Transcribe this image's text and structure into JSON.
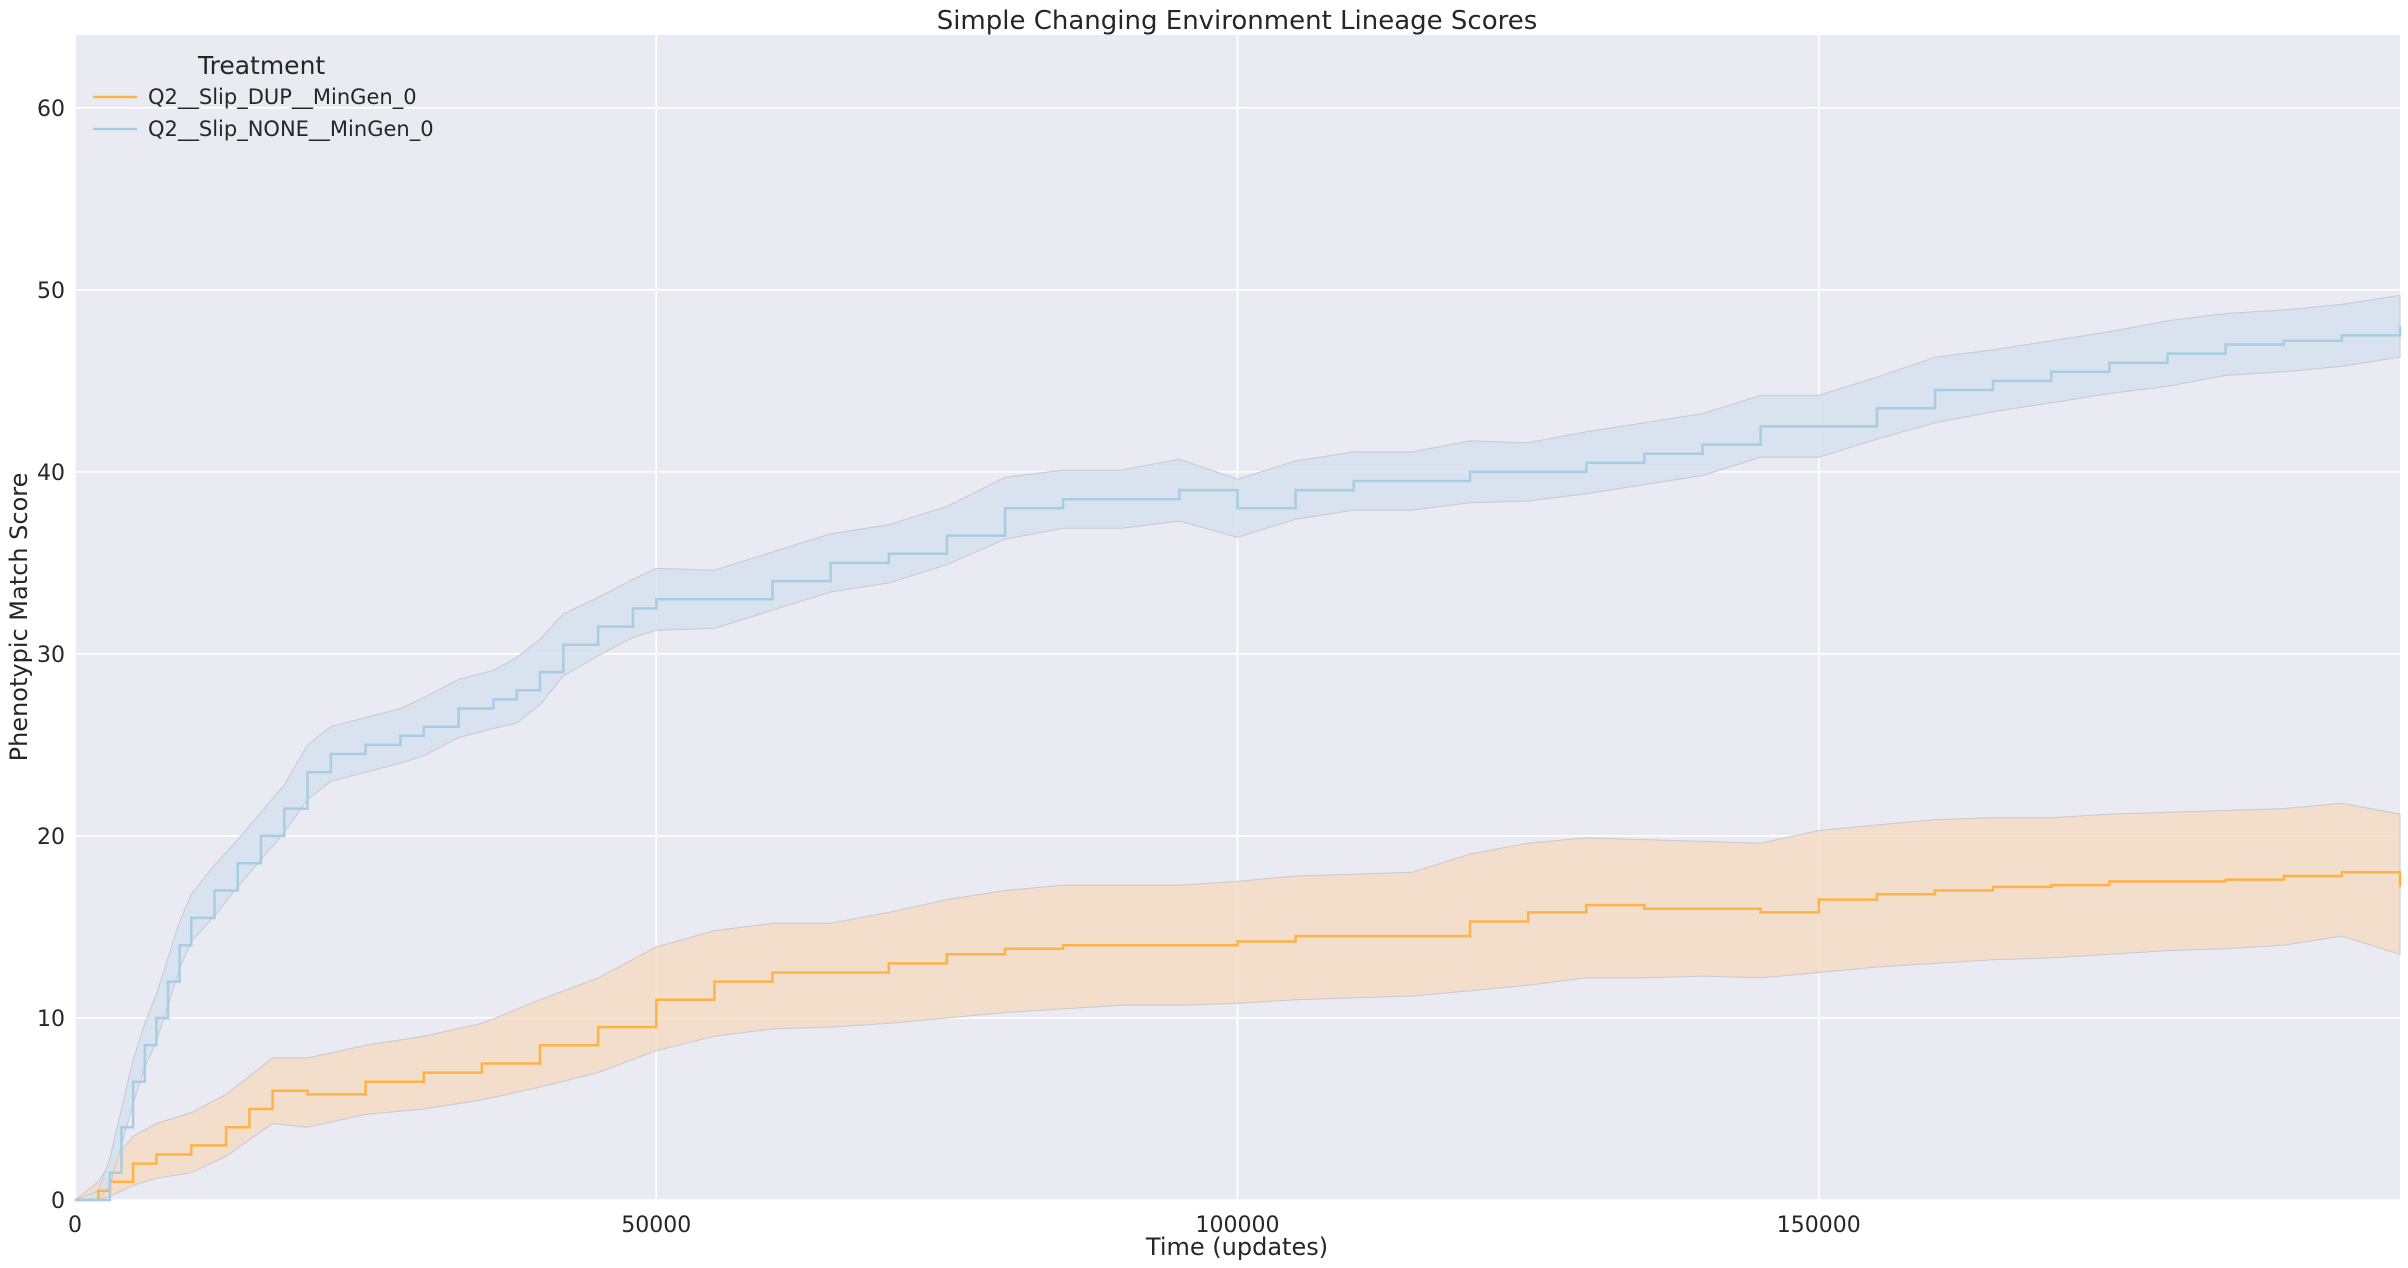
{
  "chart_data": {
    "type": "line",
    "title": "Simple Changing Environment Lineage Scores",
    "xlabel": "Time (updates)",
    "ylabel": "Phenotypic Match Score",
    "xlim": [
      0,
      200000
    ],
    "ylim": [
      0,
      64
    ],
    "xticks": [
      0,
      50000,
      100000,
      150000
    ],
    "yticks": [
      0,
      10,
      20,
      30,
      40,
      50,
      60
    ],
    "grid": true,
    "legend": {
      "title": "Treatment",
      "placement": "top-left"
    },
    "series": [
      {
        "name": "Q2__Slip_DUP__MinGen_0",
        "color": "#ffb347",
        "band_color": "#f5dcc6",
        "x": [
          0,
          2000,
          3000,
          5000,
          7000,
          10000,
          13000,
          15000,
          17000,
          20000,
          25000,
          30000,
          35000,
          40000,
          45000,
          50000,
          55000,
          60000,
          65000,
          70000,
          75000,
          80000,
          85000,
          90000,
          95000,
          100000,
          105000,
          110000,
          115000,
          120000,
          125000,
          130000,
          135000,
          140000,
          145000,
          150000,
          155000,
          160000,
          165000,
          170000,
          175000,
          180000,
          185000,
          190000,
          195000,
          200000
        ],
        "mean": [
          0,
          0.5,
          1,
          2,
          2.5,
          3,
          4,
          5,
          6,
          5.8,
          6.5,
          7,
          7.5,
          8.5,
          9.5,
          11,
          12,
          12.5,
          12.5,
          13,
          13.5,
          13.8,
          14,
          14,
          14,
          14.2,
          14.5,
          14.5,
          14.5,
          15.3,
          15.8,
          16.2,
          16,
          16,
          15.8,
          16.5,
          16.8,
          17,
          17.2,
          17.3,
          17.5,
          17.5,
          17.6,
          17.8,
          18,
          17.2
        ],
        "lower": [
          0,
          0,
          0.2,
          0.8,
          1.2,
          1.5,
          2.4,
          3.3,
          4.2,
          4,
          4.7,
          5,
          5.5,
          6.2,
          7,
          8.2,
          9,
          9.4,
          9.5,
          9.7,
          10,
          10.3,
          10.5,
          10.7,
          10.7,
          10.8,
          11,
          11.1,
          11.2,
          11.5,
          11.8,
          12.2,
          12.2,
          12.3,
          12.2,
          12.5,
          12.8,
          13,
          13.2,
          13.3,
          13.5,
          13.7,
          13.8,
          14,
          14.5,
          13.5
        ],
        "upper": [
          0,
          1,
          2,
          3.5,
          4.2,
          4.8,
          5.8,
          6.8,
          7.8,
          7.8,
          8.5,
          9,
          9.7,
          11,
          12.2,
          13.9,
          14.8,
          15.2,
          15.2,
          15.8,
          16.5,
          17,
          17.3,
          17.3,
          17.3,
          17.5,
          17.8,
          17.9,
          18,
          19,
          19.6,
          19.9,
          19.8,
          19.7,
          19.6,
          20.3,
          20.6,
          20.9,
          21,
          21,
          21.2,
          21.3,
          21.4,
          21.5,
          21.8,
          21.2
        ]
      },
      {
        "name": "Q2__Slip_NONE__MinGen_0",
        "color": "#a6cde2",
        "band_color": "#d6e2ef",
        "x": [
          0,
          2000,
          3000,
          4000,
          5000,
          6000,
          7000,
          8000,
          9000,
          10000,
          12000,
          14000,
          16000,
          18000,
          20000,
          22000,
          25000,
          28000,
          30000,
          33000,
          36000,
          38000,
          40000,
          42000,
          45000,
          48000,
          50000,
          55000,
          60000,
          65000,
          70000,
          75000,
          80000,
          85000,
          90000,
          95000,
          100000,
          105000,
          110000,
          115000,
          120000,
          125000,
          130000,
          135000,
          140000,
          145000,
          150000,
          155000,
          160000,
          165000,
          170000,
          175000,
          180000,
          185000,
          190000,
          195000,
          200000
        ],
        "mean": [
          0,
          0,
          1.5,
          4,
          6.5,
          8.5,
          10,
          12,
          14,
          15.5,
          17,
          18.5,
          20,
          21.5,
          23.5,
          24.5,
          25,
          25.5,
          26,
          27,
          27.5,
          28,
          29,
          30.5,
          31.5,
          32.5,
          33,
          33,
          34,
          35,
          35.5,
          36.5,
          38,
          38.5,
          38.5,
          39,
          38,
          39,
          39.5,
          39.5,
          40,
          40,
          40.5,
          41,
          41.5,
          42.5,
          42.5,
          43.5,
          44.5,
          45,
          45.5,
          46,
          46.5,
          47,
          47.2,
          47.5,
          48
        ],
        "lower": [
          0,
          0,
          0.8,
          3,
          5.3,
          7.3,
          8.7,
          10.7,
          12.7,
          14.2,
          15.6,
          17.2,
          18.7,
          20.2,
          22,
          23,
          23.5,
          24,
          24.4,
          25.4,
          25.9,
          26.2,
          27.2,
          28.8,
          29.9,
          30.9,
          31.3,
          31.4,
          32.4,
          33.4,
          33.9,
          34.9,
          36.3,
          36.9,
          36.9,
          37.3,
          36.4,
          37.4,
          37.9,
          37.9,
          38.3,
          38.4,
          38.8,
          39.3,
          39.8,
          40.8,
          40.8,
          41.8,
          42.7,
          43.3,
          43.8,
          44.3,
          44.7,
          45.3,
          45.5,
          45.8,
          46.3
        ],
        "upper": [
          0,
          0.5,
          2.3,
          5,
          7.7,
          9.7,
          11.3,
          13.3,
          15.3,
          16.8,
          18.4,
          19.8,
          21.3,
          22.8,
          25,
          26,
          26.5,
          27,
          27.6,
          28.6,
          29.1,
          29.8,
          30.8,
          32.2,
          33.1,
          34.1,
          34.7,
          34.6,
          35.6,
          36.6,
          37.1,
          38.1,
          39.7,
          40.1,
          40.1,
          40.7,
          39.6,
          40.6,
          41.1,
          41.1,
          41.7,
          41.6,
          42.2,
          42.7,
          43.2,
          44.2,
          44.2,
          45.2,
          46.3,
          46.7,
          47.2,
          47.7,
          48.3,
          48.7,
          48.9,
          49.2,
          49.7
        ]
      }
    ]
  }
}
